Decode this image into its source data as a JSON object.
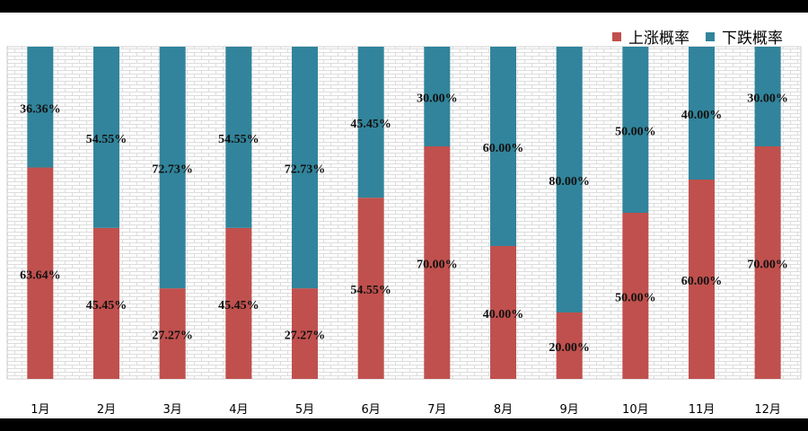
{
  "chart_data": {
    "type": "bar",
    "stacked": true,
    "categories": [
      "1月",
      "2月",
      "3月",
      "4月",
      "5月",
      "6月",
      "7月",
      "8月",
      "9月",
      "10月",
      "11月",
      "12月"
    ],
    "series": [
      {
        "name": "上涨概率",
        "color": "#c0504d",
        "values": [
          63.64,
          45.45,
          27.27,
          45.45,
          27.27,
          54.55,
          70.0,
          40.0,
          20.0,
          50.0,
          60.0,
          70.0
        ],
        "labels": [
          "63.64%",
          "45.45%",
          "27.27%",
          "45.45%",
          "27.27%",
          "54.55%",
          "70.00%",
          "40.00%",
          "20.00%",
          "50.00%",
          "60.00%",
          "70.00%"
        ]
      },
      {
        "name": "下跌概率",
        "color": "#31849b",
        "values": [
          36.36,
          54.55,
          72.73,
          54.55,
          72.73,
          45.45,
          30.0,
          60.0,
          80.0,
          50.0,
          40.0,
          30.0
        ],
        "labels": [
          "36.36%",
          "54.55%",
          "72.73%",
          "54.55%",
          "72.73%",
          "45.45%",
          "30.00%",
          "60.00%",
          "80.00%",
          "50.00%",
          "40.00%",
          "30.00%"
        ]
      }
    ],
    "ylim": [
      0,
      100
    ],
    "legend_position": "top-right",
    "grid": false,
    "plot_background": "brick-pattern"
  }
}
